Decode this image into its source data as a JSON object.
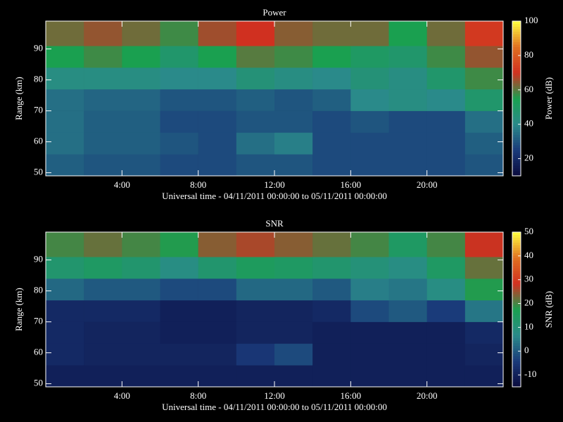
{
  "chart_data": [
    {
      "type": "heatmap",
      "title": "Power",
      "x_label": "Universal time - 04/11/2011 00:00:00 to 05/11/2011 00:00:00",
      "y_label": "Range (km)",
      "colorbar_label": "Power (dB)",
      "x": [
        0,
        2,
        4,
        6,
        8,
        10,
        12,
        14,
        16,
        18,
        20,
        22,
        24
      ],
      "y": [
        49,
        56,
        63,
        70,
        77,
        84,
        91,
        99
      ],
      "values": [
        [
          32,
          30,
          30,
          28,
          28,
          30,
          30,
          28,
          28,
          28,
          28,
          30
        ],
        [
          35,
          32,
          32,
          30,
          28,
          35,
          38,
          28,
          28,
          28,
          28,
          32
        ],
        [
          35,
          32,
          32,
          28,
          28,
          30,
          30,
          28,
          30,
          28,
          28,
          35
        ],
        [
          35,
          33,
          33,
          30,
          30,
          32,
          30,
          32,
          40,
          42,
          40,
          48
        ],
        [
          42,
          42,
          42,
          40,
          40,
          45,
          42,
          40,
          45,
          42,
          48,
          58
        ],
        [
          55,
          58,
          55,
          48,
          55,
          60,
          58,
          55,
          50,
          48,
          58,
          65
        ],
        [
          62,
          65,
          62,
          58,
          66,
          70,
          64,
          62,
          62,
          55,
          62,
          72
        ]
      ],
      "xlim": [
        0,
        24
      ],
      "xticks": [
        {
          "value": 4,
          "label": "4:00"
        },
        {
          "value": 8,
          "label": "8:00"
        },
        {
          "value": 12,
          "label": "12:00"
        },
        {
          "value": 16,
          "label": "16:00"
        },
        {
          "value": 20,
          "label": "20:00"
        }
      ],
      "ylim": [
        49,
        99
      ],
      "yticks": [
        50,
        60,
        70,
        80,
        90
      ],
      "zlim": [
        10,
        100
      ],
      "zticks": [
        20,
        40,
        60,
        80,
        100
      ],
      "colorscale": [
        "#0a0a3c",
        "#1a3a7a",
        "#2a8a8a",
        "#1aa050",
        "#d03020",
        "#e07020",
        "#ffff40"
      ]
    },
    {
      "type": "heatmap",
      "title": "SNR",
      "x_label": "Universal time - 04/11/2011 00:00:00 to 05/11/2011 00:00:00",
      "y_label": "Range (km)",
      "colorbar_label": "SNR (dB)",
      "x": [
        0,
        2,
        4,
        6,
        8,
        10,
        12,
        14,
        16,
        18,
        20,
        22,
        24
      ],
      "y": [
        49,
        56,
        63,
        70,
        77,
        84,
        91,
        99
      ],
      "values": [
        [
          -10,
          -10,
          -10,
          -10,
          -10,
          -10,
          -10,
          -10,
          -10,
          -10,
          -10,
          -10
        ],
        [
          -8,
          -9,
          -9,
          -9,
          -9,
          -5,
          -2,
          -10,
          -10,
          -10,
          -10,
          -9
        ],
        [
          -8,
          -9,
          -9,
          -10,
          -10,
          -9,
          -9,
          -10,
          -10,
          -10,
          -10,
          -8
        ],
        [
          -8,
          -8,
          -8,
          -10,
          -10,
          -9,
          -9,
          -8,
          -2,
          0,
          -4,
          4
        ],
        [
          2,
          0,
          0,
          -2,
          -2,
          2,
          2,
          0,
          5,
          4,
          8,
          18
        ],
        [
          12,
          14,
          12,
          8,
          12,
          15,
          14,
          12,
          10,
          8,
          14,
          22
        ],
        [
          20,
          22,
          20,
          18,
          24,
          26,
          24,
          22,
          20,
          14,
          20,
          28
        ]
      ],
      "xlim": [
        0,
        24
      ],
      "xticks": [
        {
          "value": 4,
          "label": "4:00"
        },
        {
          "value": 8,
          "label": "8:00"
        },
        {
          "value": 12,
          "label": "12:00"
        },
        {
          "value": 16,
          "label": "16:00"
        },
        {
          "value": 20,
          "label": "20:00"
        }
      ],
      "ylim": [
        49,
        99
      ],
      "yticks": [
        50,
        60,
        70,
        80,
        90
      ],
      "zlim": [
        -15,
        50
      ],
      "zticks": [
        -10,
        0,
        10,
        20,
        30,
        40,
        50
      ],
      "colorscale": [
        "#0a0a3c",
        "#1a3a7a",
        "#2a8a8a",
        "#1aa050",
        "#d03020",
        "#e07020",
        "#ffff40"
      ]
    }
  ]
}
